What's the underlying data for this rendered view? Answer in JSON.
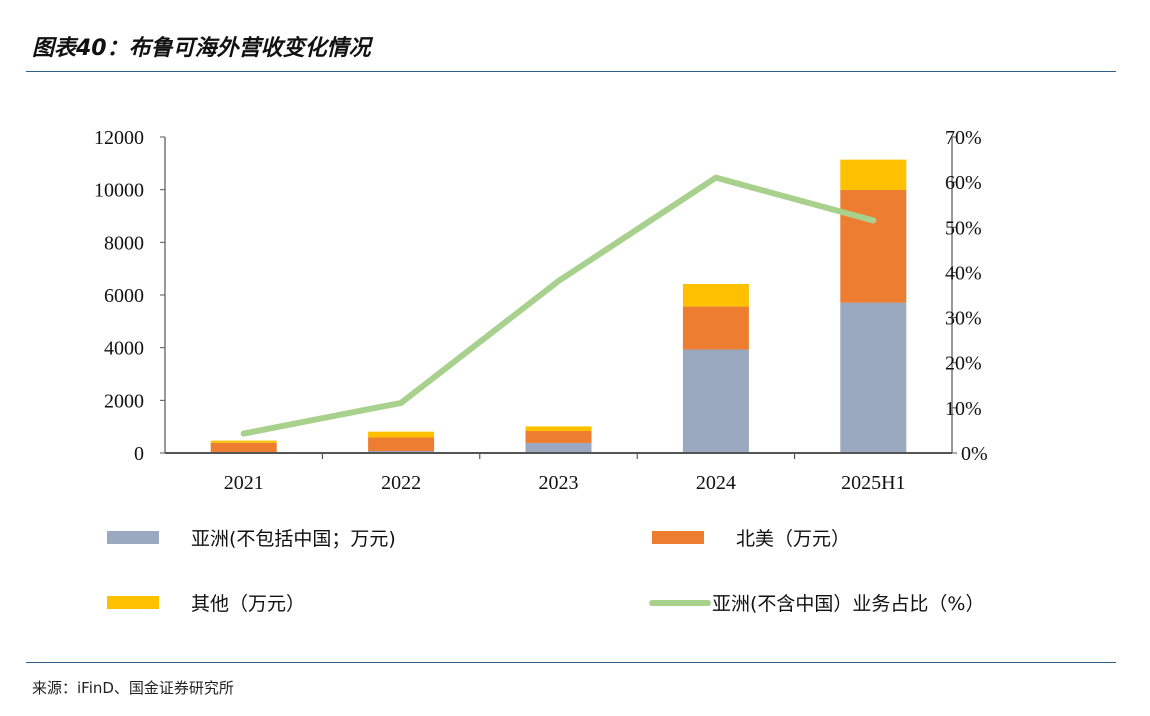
{
  "header": {
    "title": "图表40：布鲁可海外营收变化情况"
  },
  "footer": {
    "source": "来源：iFinD、国金证券研究所"
  },
  "colors": {
    "asia": "#9aa9bf",
    "north_america": "#ed7d31",
    "other": "#ffc000",
    "asia_share": "#a9d18e"
  },
  "chart_data": {
    "type": "bar",
    "title": "布鲁可海外营收变化情况",
    "categories": [
      "2021",
      "2022",
      "2023",
      "2024",
      "2025H1"
    ],
    "series": [
      {
        "name": "亚洲(不包括中国；万元)",
        "type": "bar",
        "axis": "left",
        "values": [
          10,
          75,
          380,
          3930,
          5710
        ]
      },
      {
        "name": "北美（万元）",
        "type": "bar",
        "axis": "left",
        "values": [
          380,
          515,
          455,
          1630,
          4280
        ]
      },
      {
        "name": "其他（万元）",
        "type": "bar",
        "axis": "left",
        "values": [
          80,
          220,
          175,
          860,
          1150
        ]
      },
      {
        "name": "亚洲(不含中国）业务占比（%）",
        "type": "line",
        "axis": "right",
        "values": [
          4.3,
          11.1,
          38.1,
          61.0,
          51.5
        ]
      }
    ],
    "stacked": true,
    "ylim": [
      0,
      12000
    ],
    "yticks": [
      "0",
      "2000",
      "4000",
      "6000",
      "8000",
      "10000",
      "12000"
    ],
    "y2lim": [
      0,
      70
    ],
    "y2ticks": [
      "0%",
      "10%",
      "20%",
      "30%",
      "40%",
      "50%",
      "60%",
      "70%"
    ],
    "legend": "bottom",
    "grid": false
  }
}
